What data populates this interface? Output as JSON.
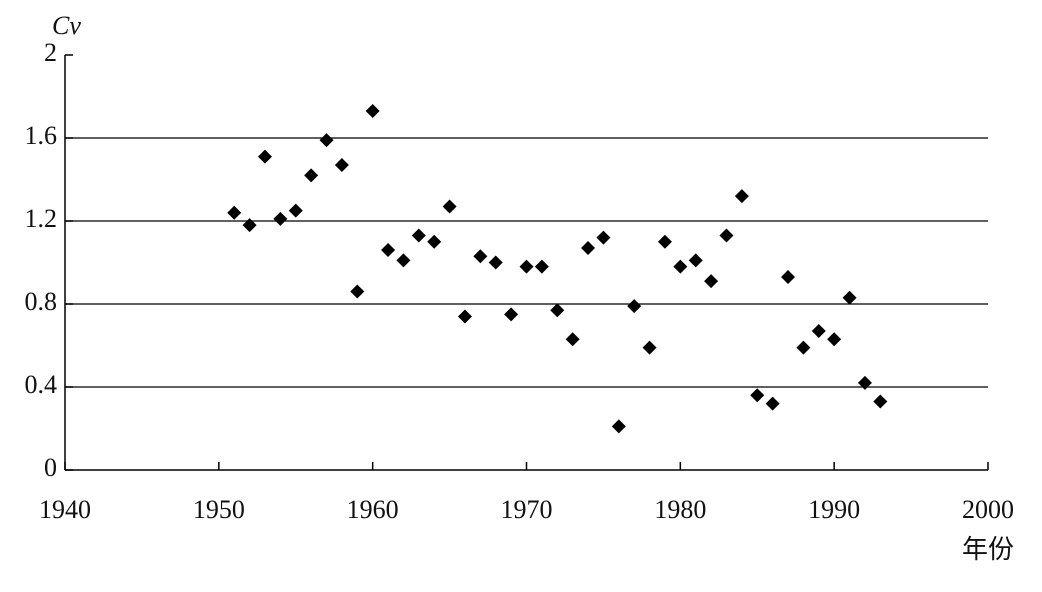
{
  "chart_data": {
    "type": "scatter",
    "ylabel": "Cv",
    "xlabel": "年份",
    "x": [
      1951,
      1952,
      1953,
      1954,
      1955,
      1956,
      1957,
      1958,
      1959,
      1960,
      1961,
      1962,
      1963,
      1964,
      1965,
      1966,
      1967,
      1968,
      1969,
      1970,
      1971,
      1972,
      1973,
      1974,
      1975,
      1976,
      1977,
      1978,
      1979,
      1980,
      1981,
      1982,
      1983,
      1984,
      1985,
      1986,
      1987,
      1988,
      1989,
      1990,
      1991,
      1992,
      1993
    ],
    "values": [
      1.24,
      1.18,
      1.51,
      1.21,
      1.25,
      1.42,
      1.59,
      1.47,
      0.86,
      1.73,
      1.06,
      1.01,
      1.13,
      1.1,
      1.27,
      0.74,
      1.03,
      1.0,
      0.75,
      0.98,
      0.98,
      0.77,
      0.63,
      1.07,
      1.12,
      0.21,
      0.79,
      0.59,
      1.1,
      0.98,
      1.01,
      0.91,
      1.13,
      1.32,
      0.36,
      0.32,
      0.93,
      0.59,
      0.67,
      0.63,
      0.83,
      0.42,
      0.33
    ],
    "color": "#000000",
    "xlim": [
      1940,
      2000
    ],
    "xticks": [
      1940,
      1950,
      1960,
      1970,
      1980,
      1990,
      2000
    ],
    "ylim": [
      0,
      2
    ],
    "yticks": [
      0,
      0.4,
      0.8,
      1.2,
      1.6,
      2
    ],
    "grid": true
  }
}
